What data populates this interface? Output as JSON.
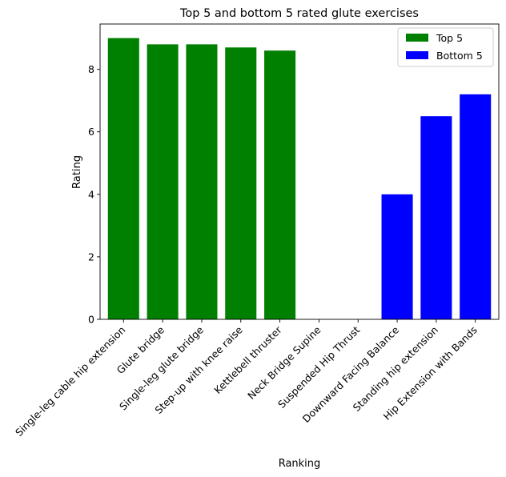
{
  "chart_data": {
    "type": "bar",
    "title": "Top 5 and bottom 5 rated glute exercises",
    "xlabel": "Ranking",
    "ylabel": "Rating",
    "ylim": [
      0,
      9.45
    ],
    "yticks": [
      0,
      2,
      4,
      6,
      8
    ],
    "grid": false,
    "legend_position": "top-right",
    "categories": [
      "Single-leg cable hip extension",
      "Glute bridge",
      "Single-leg glute bridge",
      "Step-up with knee raise",
      "Kettlebell thruster",
      "Neck Bridge Supine",
      "Suspended Hip Thrust",
      "Downward Facing Balance",
      "Standing hip extension",
      "Hip Extension with Bands"
    ],
    "series": [
      {
        "name": "Top 5",
        "color": "#008000",
        "values": [
          9.0,
          8.8,
          8.8,
          8.7,
          8.6,
          null,
          null,
          null,
          null,
          null
        ]
      },
      {
        "name": "Bottom 5",
        "color": "#0000ff",
        "values": [
          null,
          null,
          null,
          null,
          null,
          0.0,
          0.0,
          4.0,
          6.5,
          7.2
        ]
      }
    ]
  }
}
